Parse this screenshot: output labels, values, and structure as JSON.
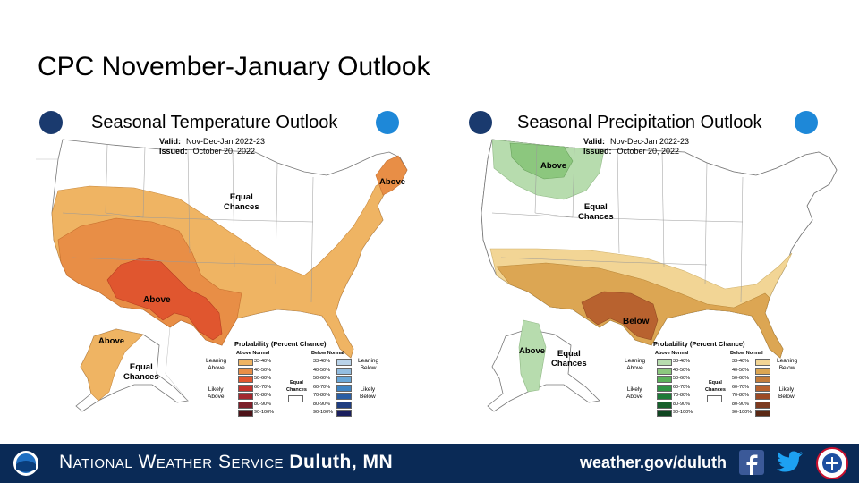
{
  "slide_title": "CPC November-January Outlook",
  "temperature": {
    "title": "Seasonal Temperature Outlook",
    "valid_label": "Valid:",
    "valid_value": "Nov-Dec-Jan 2022-23",
    "issued_label": "Issued:",
    "issued_value": "October 20, 2022",
    "labels": {
      "equal_chances_conus": "Equal\nChances",
      "above_northeast": "Above",
      "above_southwest": "Above",
      "above_alaska": "Above",
      "equal_chances_alaska": "Equal\nChances"
    },
    "colors": {
      "c33": "#efb463",
      "c40": "#e88e46",
      "c50": "#e0562f"
    }
  },
  "precipitation": {
    "title": "Seasonal Precipitation Outlook",
    "valid_label": "Valid:",
    "valid_value": "Nov-Dec-Jan 2022-23",
    "issued_label": "Issued:",
    "issued_value": "October 20, 2022",
    "labels": {
      "above_north": "Above",
      "equal_chances_conus": "Equal\nChances",
      "below_south": "Below",
      "above_alaska": "Above",
      "equal_chances_alaska": "Equal\nChances"
    },
    "colors": {
      "g33": "#b7dcae",
      "g40": "#8cc77e",
      "b33": "#f2d595",
      "b40": "#dca653",
      "b50": "#b8622f"
    }
  },
  "legend_temp": {
    "title": "Probability (Percent Chance)",
    "above_header": "Above Normal",
    "below_header": "Below Normal",
    "leaning_above": "Leaning\nAbove",
    "leaning_below": "Leaning\nBelow",
    "likely_above": "Likely\nAbove",
    "likely_below": "Likely\nBelow",
    "equal_chances": "Equal\nChances",
    "rows": [
      "33-40%",
      "40-50%",
      "50-60%",
      "60-70%",
      "70-80%",
      "80-90%",
      "90-100%"
    ],
    "above_colors": [
      "#efb463",
      "#e88e46",
      "#e0562f",
      "#c1322c",
      "#a2282f",
      "#7d1f2a",
      "#4d1318"
    ],
    "below_colors": [
      "#b9d3ea",
      "#93bde0",
      "#6aa7d7",
      "#3f84c3",
      "#2a5ea4",
      "#1f3d80",
      "#1a1f5e"
    ]
  },
  "legend_precip": {
    "title": "Probability (Percent Chance)",
    "above_header": "Above Normal",
    "below_header": "Below Normal",
    "leaning_above": "Leaning\nAbove",
    "leaning_below": "Leaning\nBelow",
    "likely_above": "Likely\nAbove",
    "likely_below": "Likely\nBelow",
    "equal_chances": "Equal\nChances",
    "rows": [
      "33-40%",
      "40-50%",
      "50-60%",
      "60-70%",
      "70-80%",
      "80-90%",
      "90-100%"
    ],
    "above_colors": [
      "#b7dcae",
      "#8cc77e",
      "#5bb15a",
      "#2f9444",
      "#1e7a38",
      "#17602c",
      "#0f4520"
    ],
    "below_colors": [
      "#f2d595",
      "#dca653",
      "#c47d3c",
      "#b8622f",
      "#9c4a26",
      "#7d3a1f",
      "#5a2915"
    ]
  },
  "footer": {
    "org_prefix": "National Weather Service",
    "office": "Duluth, MN",
    "url": "weather.gov/duluth",
    "icons": [
      "noaa-logo",
      "facebook-icon",
      "twitter-icon",
      "nws-logo"
    ]
  }
}
